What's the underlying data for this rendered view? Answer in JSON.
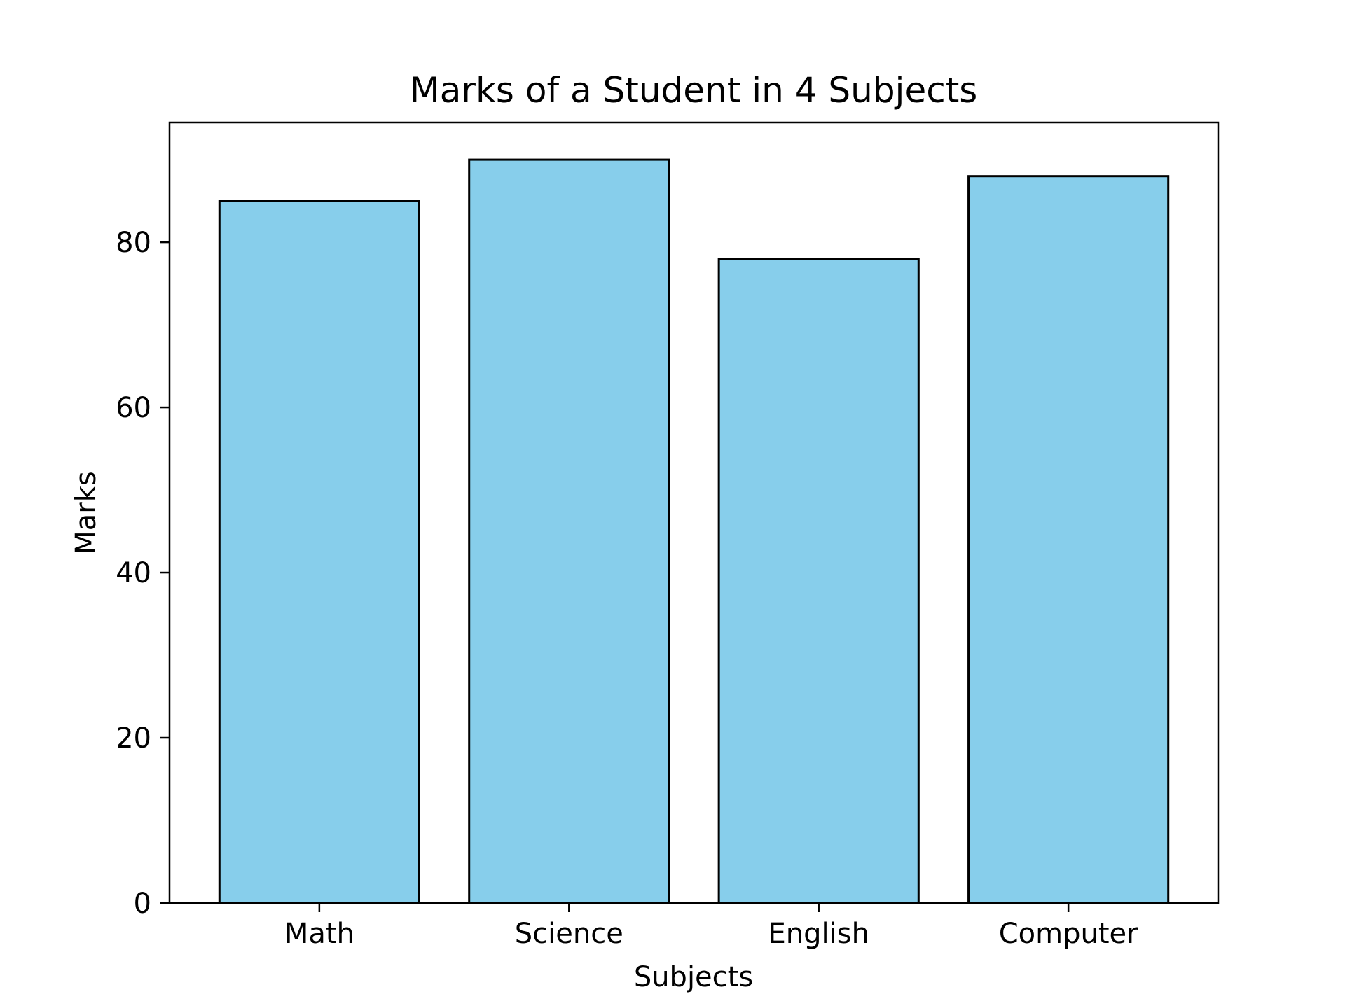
{
  "chart_data": {
    "type": "bar",
    "title": "Marks of a Student in 4 Subjects",
    "xlabel": "Subjects",
    "ylabel": "Marks",
    "categories": [
      "Math",
      "Science",
      "English",
      "Computer"
    ],
    "values": [
      85,
      90,
      78,
      88
    ],
    "yticks": [
      0,
      20,
      40,
      60,
      80
    ],
    "ylim": [
      0,
      94.5
    ],
    "grid": false,
    "legend": "none",
    "bar_color": "#87CEEB",
    "edge_color": "#000000"
  }
}
